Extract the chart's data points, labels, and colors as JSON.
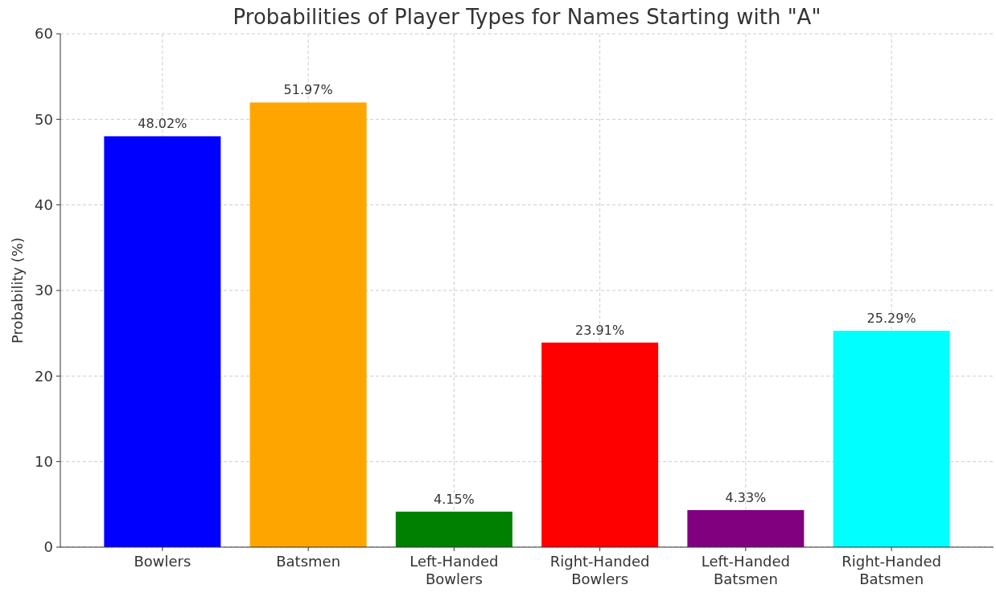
{
  "chart_data": {
    "type": "bar",
    "title": "Probabilities of Player Types for Names Starting with \"A\"",
    "ylabel": "Probability (%)",
    "categories": [
      "Bowlers",
      "Batsmen",
      "Left-Handed Bowlers",
      "Right-Handed Bowlers",
      "Left-Handed Batsmen",
      "Right-Handed Batsmen"
    ],
    "values": [
      48.02,
      51.97,
      4.15,
      23.91,
      4.33,
      25.29
    ],
    "colors": [
      "#0000ff",
      "#ffa500",
      "#008000",
      "#ff0000",
      "#800080",
      "#00ffff"
    ],
    "value_labels": [
      "48.02%",
      "51.97%",
      "4.15%",
      "23.91%",
      "4.33%",
      "25.29%"
    ],
    "ylim": [
      0,
      60
    ],
    "yticks": [
      0,
      10,
      20,
      30,
      40,
      50,
      60
    ],
    "grid": true
  }
}
